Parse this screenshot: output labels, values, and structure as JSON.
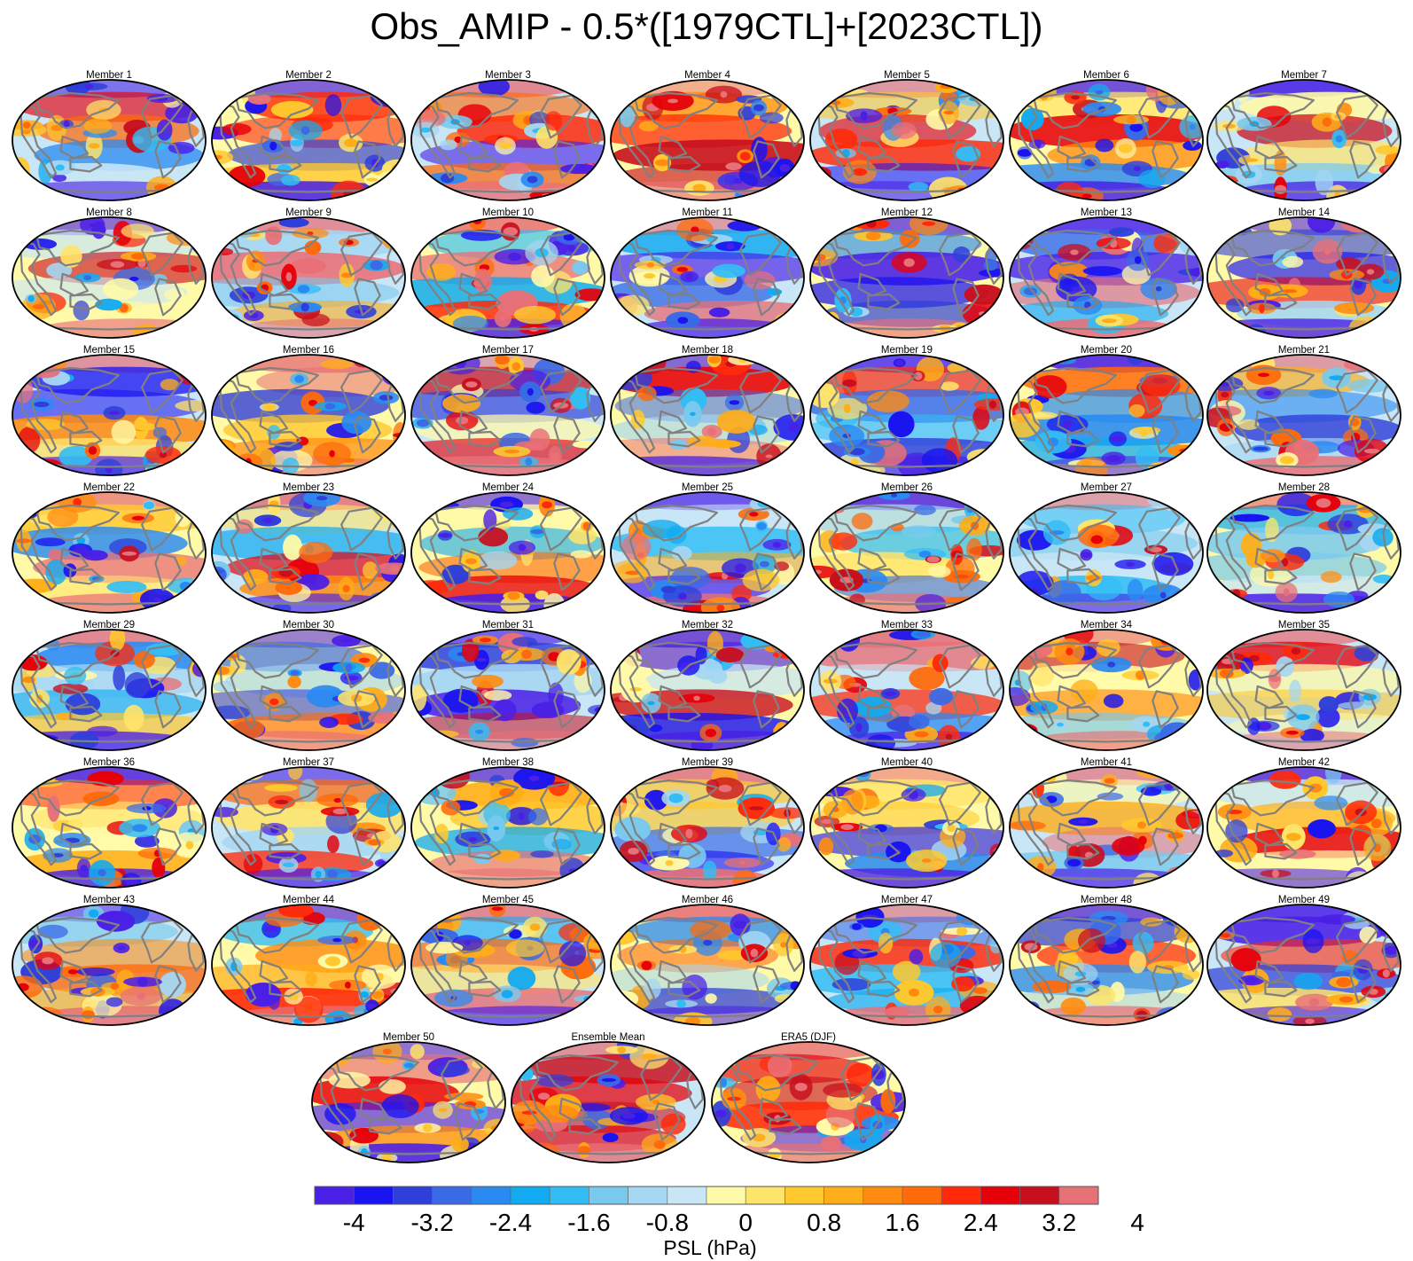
{
  "figure": {
    "title": "Obs_AMIP - 0.5*([1979CTL]+[2023CTL])"
  },
  "panels": [
    "Member 1",
    "Member 2",
    "Member 3",
    "Member 4",
    "Member 5",
    "Member 6",
    "Member 7",
    "Member 8",
    "Member 9",
    "Member 10",
    "Member 11",
    "Member 12",
    "Member 13",
    "Member 14",
    "Member 15",
    "Member 16",
    "Member 17",
    "Member 18",
    "Member 19",
    "Member 20",
    "Member 21",
    "Member 22",
    "Member 23",
    "Member 24",
    "Member 25",
    "Member 26",
    "Member 27",
    "Member 28",
    "Member 29",
    "Member 30",
    "Member 31",
    "Member 32",
    "Member 33",
    "Member 34",
    "Member 35",
    "Member 36",
    "Member 37",
    "Member 38",
    "Member 39",
    "Member 40",
    "Member 41",
    "Member 42",
    "Member 43",
    "Member 44",
    "Member 45",
    "Member 46",
    "Member 47",
    "Member 48",
    "Member 49",
    "Member 50",
    "Ensemble Mean",
    "ERA5 (DJF)"
  ],
  "colorbar": {
    "title": "PSL (hPa)",
    "tick_labels": [
      "-4",
      "-3.2",
      "-2.4",
      "-1.6",
      "-0.8",
      "0",
      "0.8",
      "1.6",
      "2.4",
      "3.2",
      "4"
    ],
    "colors": [
      "#4a1fe6",
      "#1a14f0",
      "#2f3fd9",
      "#3a6ae6",
      "#2a8af2",
      "#12aaf0",
      "#33bdf5",
      "#79c9ee",
      "#a5d6f2",
      "#c8e6f5",
      "#fffaa8",
      "#ffe46a",
      "#ffc82e",
      "#ffad18",
      "#ff8c10",
      "#ff6a0a",
      "#ff2a0a",
      "#e6000a",
      "#c80f1e",
      "#e87077"
    ]
  },
  "colors": {
    "continents": "#808080",
    "outline": "#000000"
  }
}
